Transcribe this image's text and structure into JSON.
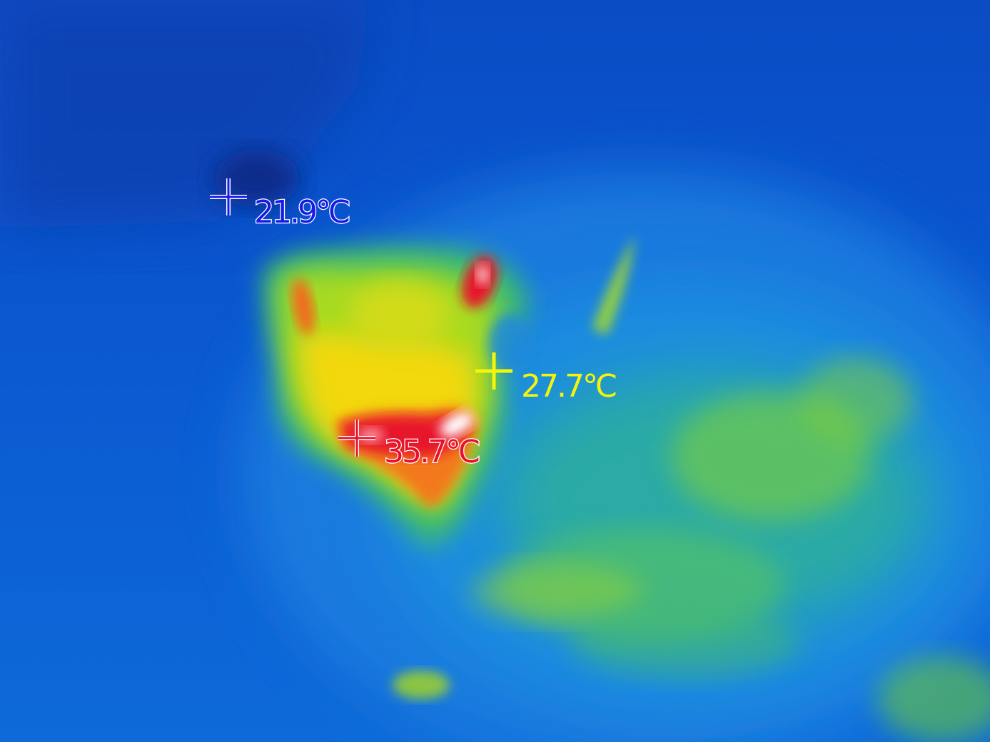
{
  "readouts": {
    "min": {
      "value": "21.9℃",
      "color": "#1818e8"
    },
    "center": {
      "value": "27.7℃",
      "color": "#f5f50a"
    },
    "max": {
      "value": "35.7℃",
      "color": "#e8102a"
    }
  },
  "palette": {
    "cold": "#0a4fc8",
    "cool": "#1a86e0",
    "mid": "#2bbf8a",
    "warm": "#c8e01a",
    "hot": "#f5d00a",
    "hotter": "#f26a1a",
    "hottest": "#e8102a",
    "peak": "#ffffff"
  }
}
